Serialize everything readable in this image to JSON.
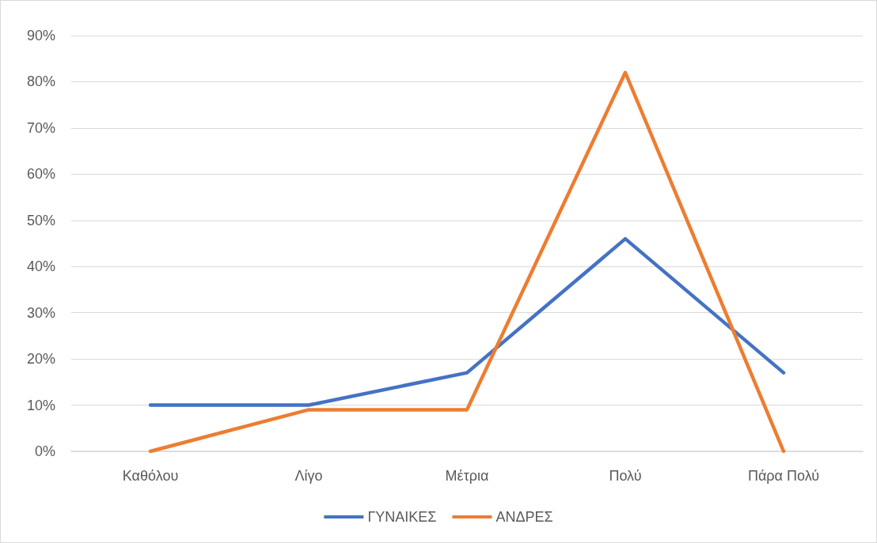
{
  "chart_data": {
    "type": "line",
    "categories": [
      "Καθόλου",
      "Λίγο",
      "Μέτρια",
      "Πολύ",
      "Πάρα Πολύ"
    ],
    "series": [
      {
        "name": "ΓΥΝΑΙΚΕΣ",
        "color": "#4472c4",
        "values": [
          10,
          10,
          17,
          46,
          17
        ]
      },
      {
        "name": "ΑΝΔΡΕΣ",
        "color": "#ed7d31",
        "values": [
          0,
          9,
          9,
          82,
          0
        ]
      }
    ],
    "ylim": [
      0,
      90
    ],
    "yticks": [
      {
        "value": 0,
        "label": "0%"
      },
      {
        "value": 10,
        "label": "10%"
      },
      {
        "value": 20,
        "label": "20%"
      },
      {
        "value": 30,
        "label": "30%"
      },
      {
        "value": 40,
        "label": "40%"
      },
      {
        "value": 50,
        "label": "50%"
      },
      {
        "value": 60,
        "label": "60%"
      },
      {
        "value": 70,
        "label": "70%"
      },
      {
        "value": 80,
        "label": "80%"
      },
      {
        "value": 90,
        "label": "90%"
      }
    ],
    "grid": "y",
    "legend": "bottom",
    "marker": "none",
    "line_style": "solid"
  }
}
